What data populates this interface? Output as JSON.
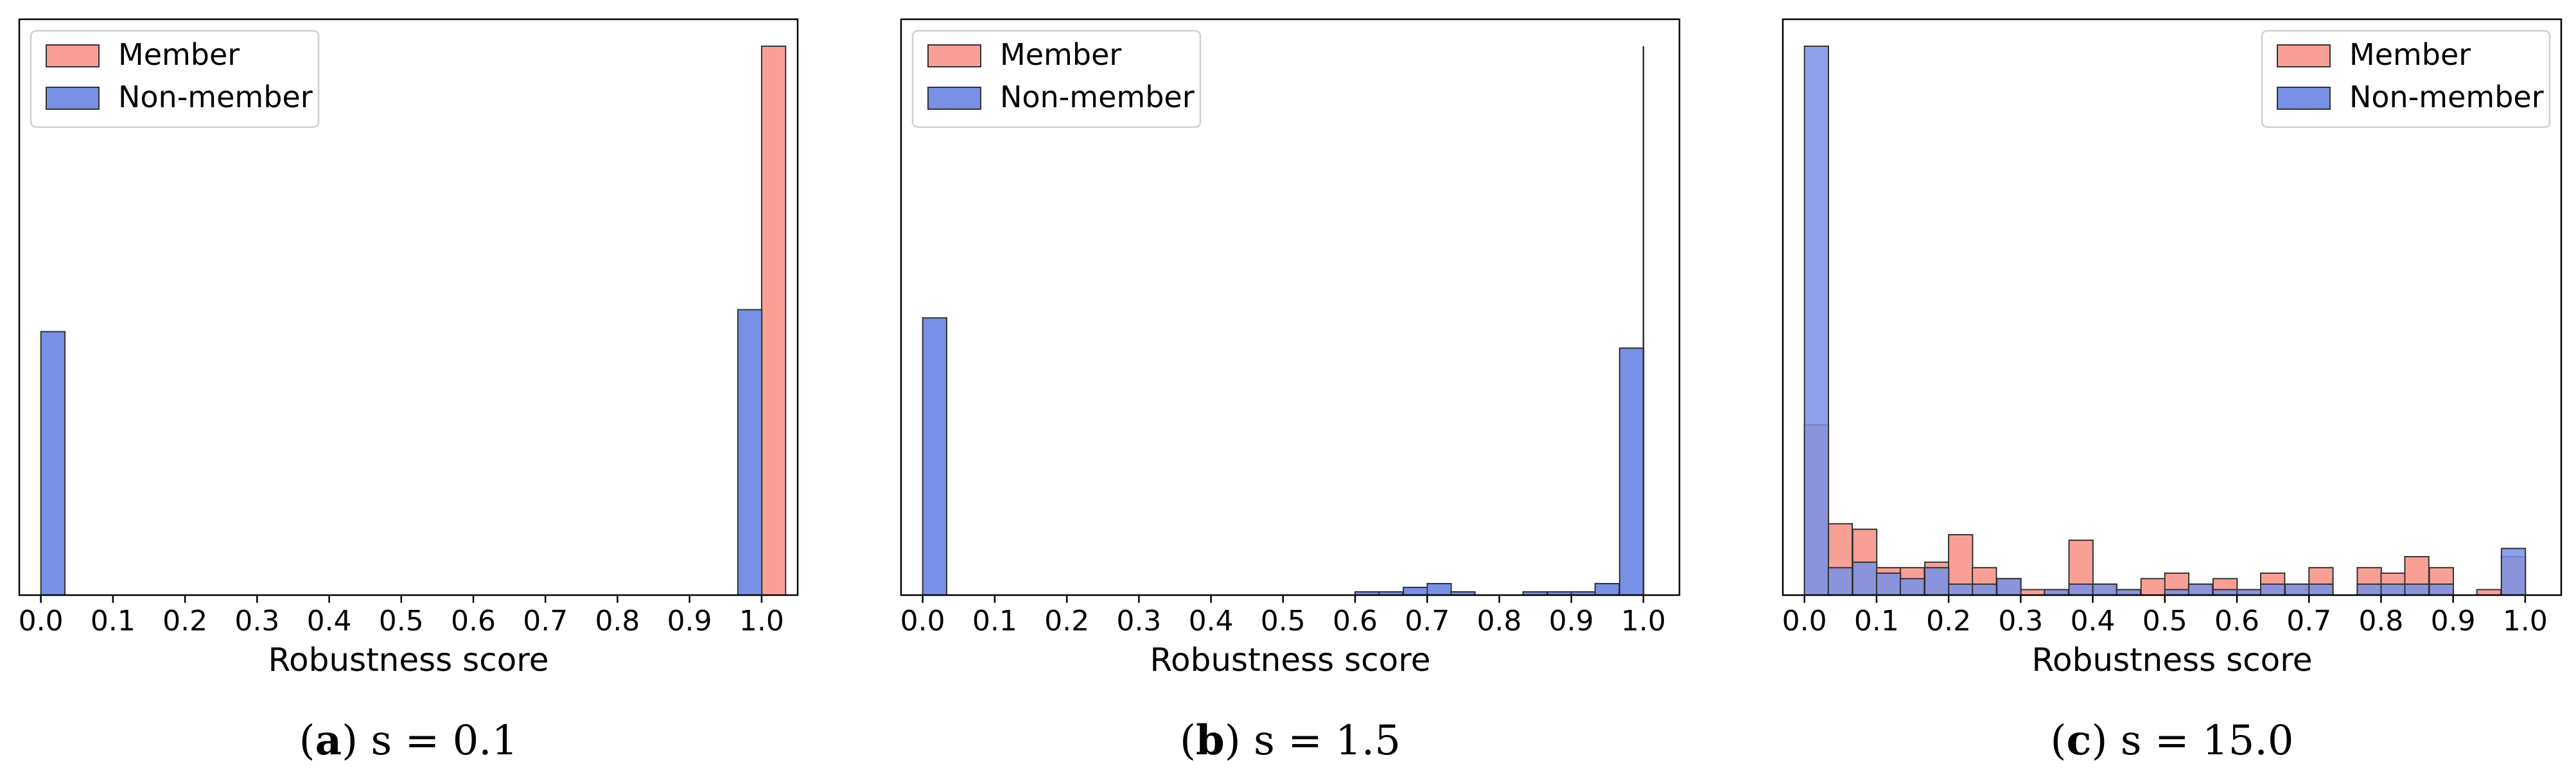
{
  "colors": {
    "member": "#f8a096",
    "non_member": "#7891e6",
    "overlap": "#7a70c8",
    "edge": "#333333",
    "axis": "#000000"
  },
  "chart_data": [
    {
      "type": "histogram",
      "caption_label": "a",
      "caption_text": "s = 0.1",
      "xlabel": "Robustness score",
      "ylabel": "",
      "xlim": [
        -0.03,
        1.05
      ],
      "ylim": [
        0,
        1.0
      ],
      "xticks": [
        "0.0",
        "0.1",
        "0.2",
        "0.3",
        "0.4",
        "0.5",
        "0.6",
        "0.7",
        "0.8",
        "0.9",
        "1.0"
      ],
      "yticks_visible": false,
      "legend_position": "top-left",
      "bin_width": 0.0333,
      "series": [
        {
          "name": "Member",
          "color_key": "member",
          "bins": [
            {
              "x": 1.0,
              "v": 1.0
            }
          ]
        },
        {
          "name": "Non-member",
          "color_key": "non_member",
          "bins": [
            {
              "x": 0.0,
              "v": 0.48
            },
            {
              "x": 0.967,
              "v": 0.52
            }
          ]
        }
      ]
    },
    {
      "type": "histogram",
      "caption_label": "b",
      "caption_text": "s = 1.5",
      "xlabel": "Robustness score",
      "ylabel": "",
      "xlim": [
        -0.03,
        1.05
      ],
      "ylim": [
        0,
        1.0
      ],
      "xticks": [
        "0.0",
        "0.1",
        "0.2",
        "0.3",
        "0.4",
        "0.5",
        "0.6",
        "0.7",
        "0.8",
        "0.9",
        "1.0"
      ],
      "yticks_visible": false,
      "legend_position": "top-left",
      "bin_width": 0.0333,
      "member_spike": {
        "x": 1.0,
        "v": 1.0
      },
      "series": [
        {
          "name": "Member",
          "color_key": "member",
          "bins": []
        },
        {
          "name": "Non-member",
          "color_key": "non_member",
          "bins": [
            {
              "x": 0.0,
              "v": 0.505
            },
            {
              "x": 0.6,
              "v": 0.006
            },
            {
              "x": 0.633,
              "v": 0.006
            },
            {
              "x": 0.667,
              "v": 0.014
            },
            {
              "x": 0.7,
              "v": 0.021
            },
            {
              "x": 0.733,
              "v": 0.006
            },
            {
              "x": 0.833,
              "v": 0.006
            },
            {
              "x": 0.867,
              "v": 0.006
            },
            {
              "x": 0.9,
              "v": 0.006
            },
            {
              "x": 0.933,
              "v": 0.021
            },
            {
              "x": 0.967,
              "v": 0.45
            }
          ]
        }
      ]
    },
    {
      "type": "histogram",
      "caption_label": "c",
      "caption_text": "s = 15.0",
      "xlabel": "Robustness score",
      "ylabel": "",
      "xlim": [
        -0.03,
        1.05
      ],
      "ylim": [
        0,
        1.0
      ],
      "xticks": [
        "0.0",
        "0.1",
        "0.2",
        "0.3",
        "0.4",
        "0.5",
        "0.6",
        "0.7",
        "0.8",
        "0.9",
        "1.0"
      ],
      "yticks_visible": false,
      "legend_position": "top-right",
      "bin_width": 0.0333,
      "series": [
        {
          "name": "Member",
          "color_key": "member",
          "bins": [
            {
              "x": 0.0,
              "v": 0.31
            },
            {
              "x": 0.033,
              "v": 0.13
            },
            {
              "x": 0.067,
              "v": 0.12
            },
            {
              "x": 0.1,
              "v": 0.05
            },
            {
              "x": 0.133,
              "v": 0.05
            },
            {
              "x": 0.167,
              "v": 0.06
            },
            {
              "x": 0.2,
              "v": 0.11
            },
            {
              "x": 0.233,
              "v": 0.05
            },
            {
              "x": 0.267,
              "v": 0.03
            },
            {
              "x": 0.3,
              "v": 0.01
            },
            {
              "x": 0.333,
              "v": 0.01
            },
            {
              "x": 0.367,
              "v": 0.1
            },
            {
              "x": 0.4,
              "v": 0.02
            },
            {
              "x": 0.433,
              "v": 0.01
            },
            {
              "x": 0.467,
              "v": 0.03
            },
            {
              "x": 0.5,
              "v": 0.04
            },
            {
              "x": 0.533,
              "v": 0.02
            },
            {
              "x": 0.567,
              "v": 0.03
            },
            {
              "x": 0.6,
              "v": 0.01
            },
            {
              "x": 0.633,
              "v": 0.04
            },
            {
              "x": 0.667,
              "v": 0.02
            },
            {
              "x": 0.7,
              "v": 0.05
            },
            {
              "x": 0.733,
              "v": 0.0
            },
            {
              "x": 0.767,
              "v": 0.05
            },
            {
              "x": 0.8,
              "v": 0.04
            },
            {
              "x": 0.833,
              "v": 0.07
            },
            {
              "x": 0.867,
              "v": 0.05
            },
            {
              "x": 0.9,
              "v": 0.0
            },
            {
              "x": 0.933,
              "v": 0.01
            },
            {
              "x": 0.967,
              "v": 0.07
            }
          ]
        },
        {
          "name": "Non-member",
          "color_key": "non_member",
          "bins": [
            {
              "x": 0.0,
              "v": 1.0
            },
            {
              "x": 0.033,
              "v": 0.05
            },
            {
              "x": 0.067,
              "v": 0.06
            },
            {
              "x": 0.1,
              "v": 0.04
            },
            {
              "x": 0.133,
              "v": 0.03
            },
            {
              "x": 0.167,
              "v": 0.05
            },
            {
              "x": 0.2,
              "v": 0.02
            },
            {
              "x": 0.233,
              "v": 0.02
            },
            {
              "x": 0.267,
              "v": 0.03
            },
            {
              "x": 0.3,
              "v": 0.0
            },
            {
              "x": 0.333,
              "v": 0.01
            },
            {
              "x": 0.367,
              "v": 0.02
            },
            {
              "x": 0.4,
              "v": 0.02
            },
            {
              "x": 0.433,
              "v": 0.01
            },
            {
              "x": 0.467,
              "v": 0.0
            },
            {
              "x": 0.5,
              "v": 0.01
            },
            {
              "x": 0.533,
              "v": 0.02
            },
            {
              "x": 0.567,
              "v": 0.01
            },
            {
              "x": 0.6,
              "v": 0.01
            },
            {
              "x": 0.633,
              "v": 0.02
            },
            {
              "x": 0.667,
              "v": 0.02
            },
            {
              "x": 0.7,
              "v": 0.02
            },
            {
              "x": 0.733,
              "v": 0.0
            },
            {
              "x": 0.767,
              "v": 0.02
            },
            {
              "x": 0.8,
              "v": 0.02
            },
            {
              "x": 0.833,
              "v": 0.02
            },
            {
              "x": 0.867,
              "v": 0.02
            },
            {
              "x": 0.9,
              "v": 0.0
            },
            {
              "x": 0.933,
              "v": 0.0
            },
            {
              "x": 0.967,
              "v": 0.085
            }
          ]
        }
      ]
    }
  ]
}
